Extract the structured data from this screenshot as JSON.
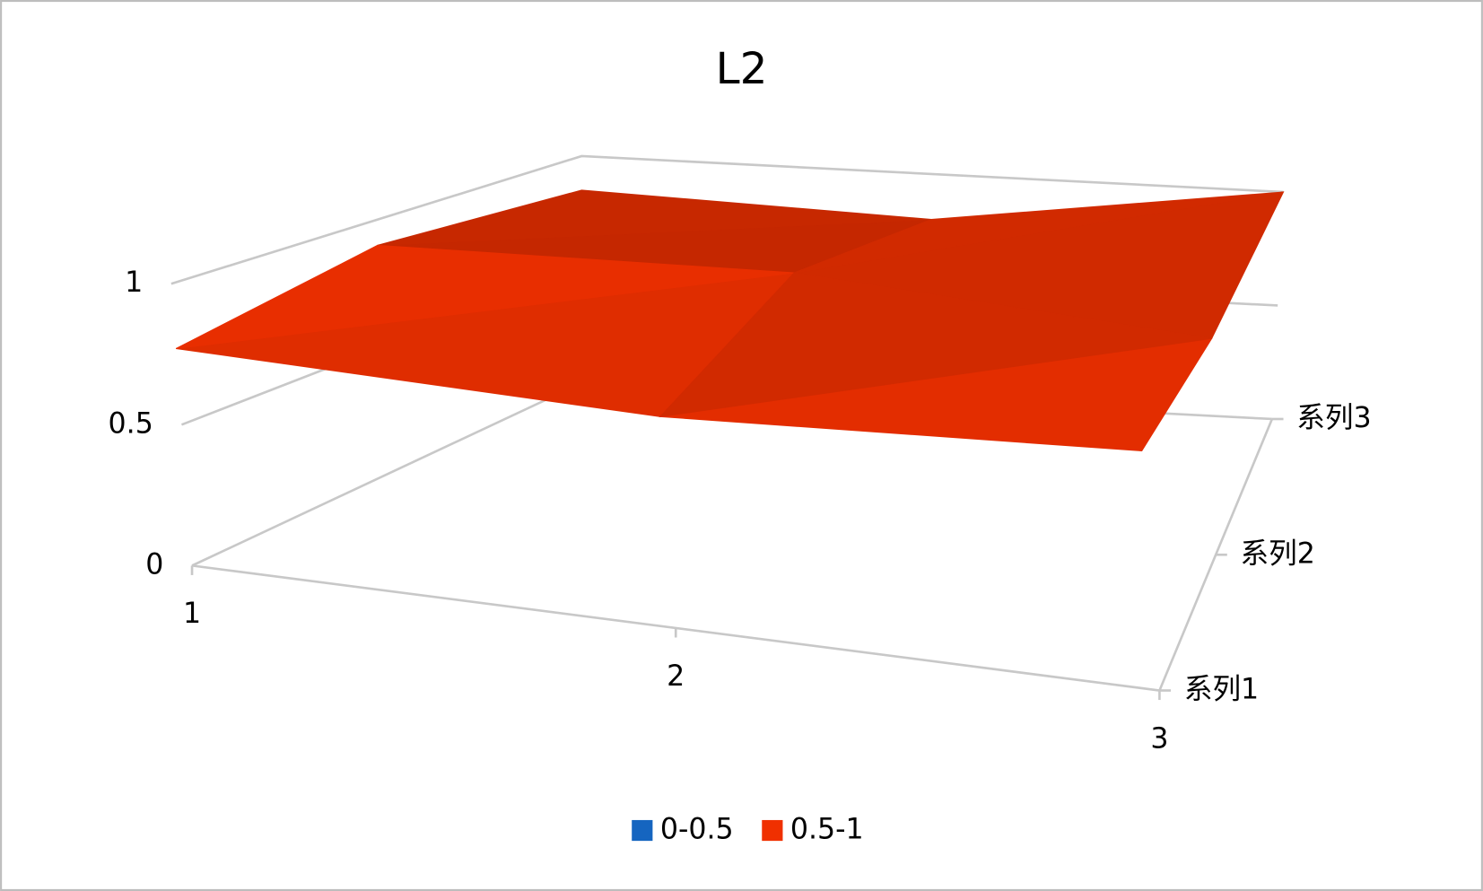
{
  "chart_data": {
    "type": "surface3d",
    "title": "L2",
    "categories": [
      "1",
      "2",
      "3"
    ],
    "series": [
      {
        "name": "系列1",
        "values": [
          0.77,
          0.75,
          0.85
        ]
      },
      {
        "name": "系列2",
        "values": [
          0.9,
          0.95,
          0.85
        ]
      },
      {
        "name": "系列3",
        "values": [
          0.85,
          0.8,
          1.0
        ]
      }
    ],
    "zlim": [
      0,
      1
    ],
    "zticks": [
      0,
      0.5,
      1
    ],
    "bands": [
      {
        "name": "0-0.5",
        "color": "#1565c0",
        "range": [
          0,
          0.5
        ]
      },
      {
        "name": "0.5-1",
        "color": "#f03000",
        "range": [
          0.5,
          1
        ]
      }
    ]
  }
}
